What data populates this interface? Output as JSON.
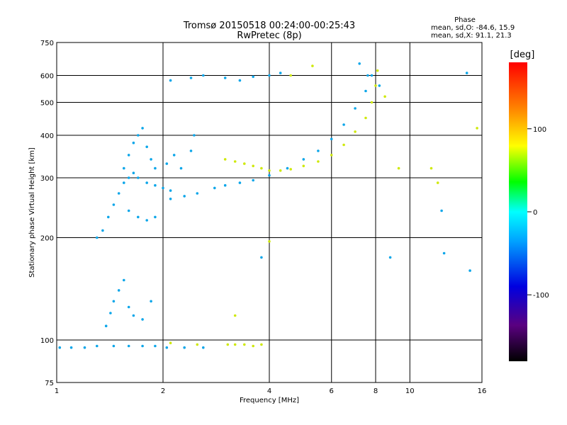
{
  "chart_data": {
    "type": "scatter",
    "title": "Tromsø 20150518 00:24:00-00:25:43",
    "subtitle": "RwPretec (8p)",
    "xlabel": "Frequency [MHz]",
    "ylabel": "Stationary phase Virtual Height [km]",
    "x_scale": "log",
    "y_scale": "log",
    "xlim": [
      1,
      16
    ],
    "ylim": [
      75,
      750
    ],
    "x_ticks": [
      1,
      2,
      4,
      6,
      8,
      10,
      16
    ],
    "y_ticks": [
      75,
      100,
      200,
      300,
      400,
      500,
      600,
      750
    ],
    "grid": true,
    "legend": {
      "header": "Phase",
      "line1": "mean, sd,O: -84.6, 15.9",
      "line2": "mean, sd,X:  91.1, 21.3",
      "position": "top-right"
    },
    "colorbar": {
      "label": "[deg]",
      "ticks": [
        100,
        0,
        -100
      ],
      "range": [
        -180,
        180
      ]
    },
    "series": [
      {
        "name": "O",
        "mean_deg": -84.6,
        "sd_deg": 15.9,
        "points": [
          [
            1.02,
            95
          ],
          [
            1.1,
            95
          ],
          [
            1.2,
            95
          ],
          [
            1.3,
            96
          ],
          [
            1.45,
            96
          ],
          [
            1.6,
            96
          ],
          [
            1.75,
            96
          ],
          [
            1.9,
            96
          ],
          [
            2.05,
            95
          ],
          [
            2.3,
            95
          ],
          [
            2.6,
            95
          ],
          [
            1.3,
            200
          ],
          [
            1.35,
            210
          ],
          [
            1.4,
            230
          ],
          [
            1.45,
            250
          ],
          [
            1.5,
            270
          ],
          [
            1.55,
            290
          ],
          [
            1.6,
            300
          ],
          [
            1.65,
            310
          ],
          [
            1.7,
            300
          ],
          [
            1.8,
            290
          ],
          [
            1.9,
            285
          ],
          [
            2.0,
            280
          ],
          [
            2.1,
            275
          ],
          [
            1.55,
            320
          ],
          [
            1.6,
            350
          ],
          [
            1.65,
            380
          ],
          [
            1.7,
            400
          ],
          [
            1.75,
            420
          ],
          [
            1.8,
            370
          ],
          [
            1.85,
            340
          ],
          [
            1.9,
            320
          ],
          [
            1.6,
            240
          ],
          [
            1.7,
            230
          ],
          [
            1.8,
            225
          ],
          [
            1.9,
            230
          ],
          [
            2.1,
            260
          ],
          [
            2.3,
            265
          ],
          [
            2.5,
            270
          ],
          [
            2.8,
            280
          ],
          [
            3.0,
            285
          ],
          [
            3.3,
            290
          ],
          [
            3.6,
            295
          ],
          [
            4.0,
            305
          ],
          [
            4.5,
            320
          ],
          [
            5.0,
            340
          ],
          [
            5.5,
            360
          ],
          [
            6.0,
            390
          ],
          [
            6.5,
            430
          ],
          [
            7.0,
            480
          ],
          [
            7.5,
            540
          ],
          [
            7.8,
            600
          ],
          [
            2.05,
            330
          ],
          [
            2.15,
            350
          ],
          [
            2.25,
            320
          ],
          [
            2.4,
            360
          ],
          [
            2.45,
            400
          ],
          [
            2.1,
            580
          ],
          [
            2.4,
            590
          ],
          [
            2.6,
            600
          ],
          [
            3.0,
            590
          ],
          [
            3.3,
            580
          ],
          [
            3.6,
            595
          ],
          [
            4.0,
            600
          ],
          [
            4.3,
            610
          ],
          [
            1.38,
            110
          ],
          [
            1.42,
            120
          ],
          [
            1.45,
            130
          ],
          [
            1.5,
            140
          ],
          [
            1.55,
            150
          ],
          [
            1.6,
            125
          ],
          [
            1.65,
            118
          ],
          [
            1.75,
            115
          ],
          [
            1.85,
            130
          ],
          [
            7.2,
            650
          ],
          [
            7.6,
            600
          ],
          [
            8.2,
            560
          ],
          [
            14.5,
            610
          ],
          [
            12.3,
            240
          ],
          [
            8.8,
            175
          ],
          [
            12.5,
            180
          ],
          [
            14.8,
            160
          ],
          [
            3.8,
            175
          ]
        ]
      },
      {
        "name": "X",
        "mean_deg": 91.1,
        "sd_deg": 21.3,
        "points": [
          [
            3.0,
            340
          ],
          [
            3.2,
            335
          ],
          [
            3.4,
            330
          ],
          [
            3.6,
            325
          ],
          [
            3.8,
            320
          ],
          [
            4.0,
            315
          ],
          [
            4.3,
            315
          ],
          [
            4.6,
            318
          ],
          [
            5.0,
            325
          ],
          [
            5.5,
            335
          ],
          [
            6.0,
            350
          ],
          [
            6.5,
            375
          ],
          [
            7.0,
            410
          ],
          [
            7.5,
            450
          ],
          [
            7.8,
            500
          ],
          [
            8.0,
            560
          ],
          [
            8.1,
            620
          ],
          [
            3.05,
            97
          ],
          [
            3.2,
            97
          ],
          [
            3.4,
            97
          ],
          [
            3.6,
            96
          ],
          [
            3.8,
            97
          ],
          [
            2.1,
            98
          ],
          [
            2.5,
            97
          ],
          [
            3.2,
            118
          ],
          [
            4.0,
            195
          ],
          [
            4.6,
            600
          ],
          [
            5.3,
            640
          ],
          [
            8.5,
            520
          ],
          [
            9.3,
            320
          ],
          [
            11.5,
            320
          ],
          [
            12.0,
            290
          ],
          [
            15.5,
            420
          ]
        ]
      }
    ]
  }
}
